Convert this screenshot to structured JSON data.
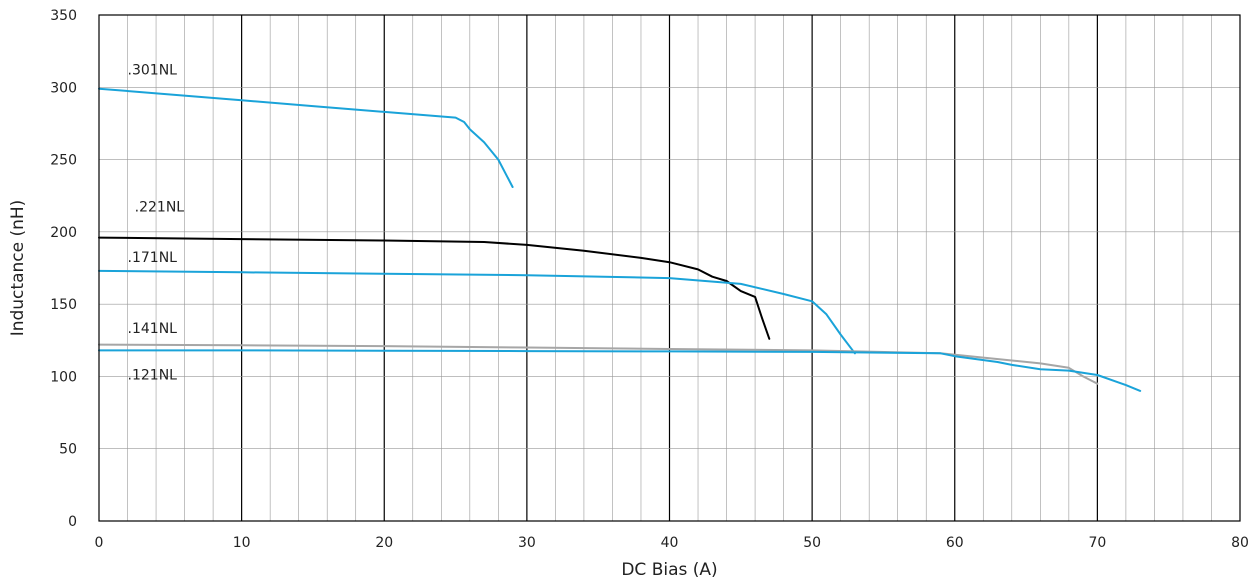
{
  "chart_data": {
    "type": "line",
    "title": "",
    "xlabel": "DC Bias (A)",
    "ylabel": "Inductance (nH)",
    "xlim": [
      0,
      80
    ],
    "ylim": [
      0,
      350
    ],
    "x_ticks": [
      0,
      10,
      20,
      30,
      40,
      50,
      60,
      70,
      80
    ],
    "y_ticks": [
      0,
      50,
      100,
      150,
      200,
      250,
      300,
      350
    ],
    "x_tick_labels": [
      "0",
      "10",
      "20",
      "30",
      "40",
      "50",
      "60",
      "70",
      "80"
    ],
    "y_tick_labels": [
      "0",
      "50",
      "100",
      "150",
      "200",
      "250",
      "300",
      "350"
    ],
    "x_minor_step": 2,
    "y_minor_step": 50,
    "grid": true,
    "legend": "inline labels",
    "series": [
      {
        "name": ".301NL",
        "color": "#1aa3d9",
        "x": [
          0,
          5,
          10,
          15,
          20,
          25,
          25.6,
          26,
          27,
          28,
          29
        ],
        "y": [
          299,
          295,
          291,
          287,
          283,
          279,
          276,
          271,
          262,
          250,
          231
        ]
      },
      {
        "name": ".221NL",
        "color": "#000000",
        "x": [
          0,
          10,
          20,
          27,
          30,
          34,
          38,
          40,
          42,
          43,
          44,
          45,
          46,
          46.5,
          47
        ],
        "y": [
          196,
          195,
          194,
          193,
          191,
          187,
          182,
          179,
          174,
          169,
          166,
          159,
          155,
          140,
          126
        ]
      },
      {
        "name": ".171NL",
        "color": "#1aa3d9",
        "x": [
          0,
          10,
          20,
          30,
          40,
          45,
          48,
          50,
          51,
          52,
          53
        ],
        "y": [
          173,
          172,
          171,
          170,
          168,
          164,
          157,
          152,
          143,
          129,
          116
        ]
      },
      {
        "name": ".141NL",
        "color": "#a6a6a6",
        "x": [
          0,
          10,
          20,
          30,
          40,
          50,
          59,
          62,
          64,
          66,
          68,
          69,
          70
        ],
        "y": [
          122,
          121.5,
          121,
          120,
          119,
          118,
          116,
          113,
          111,
          109,
          106,
          100,
          95
        ]
      },
      {
        "name": ".121NL",
        "color": "#1aa3d9",
        "x": [
          0,
          10,
          20,
          30,
          40,
          50,
          59,
          60,
          63,
          64,
          66,
          68,
          70,
          72,
          73
        ],
        "y": [
          118,
          118,
          117.8,
          117.5,
          117.3,
          117,
          116,
          114,
          110,
          108,
          105,
          104,
          101,
          94,
          90
        ]
      }
    ],
    "labels": [
      {
        "text": ".301NL",
        "x": 2,
        "y": 309
      },
      {
        "text": ".221NL",
        "x": 2.5,
        "y": 214
      },
      {
        "text": ".171NL",
        "x": 2,
        "y": 179
      },
      {
        "text": ".141NL",
        "x": 2,
        "y": 130
      },
      {
        "text": ".121NL",
        "x": 2,
        "y": 98
      }
    ]
  }
}
